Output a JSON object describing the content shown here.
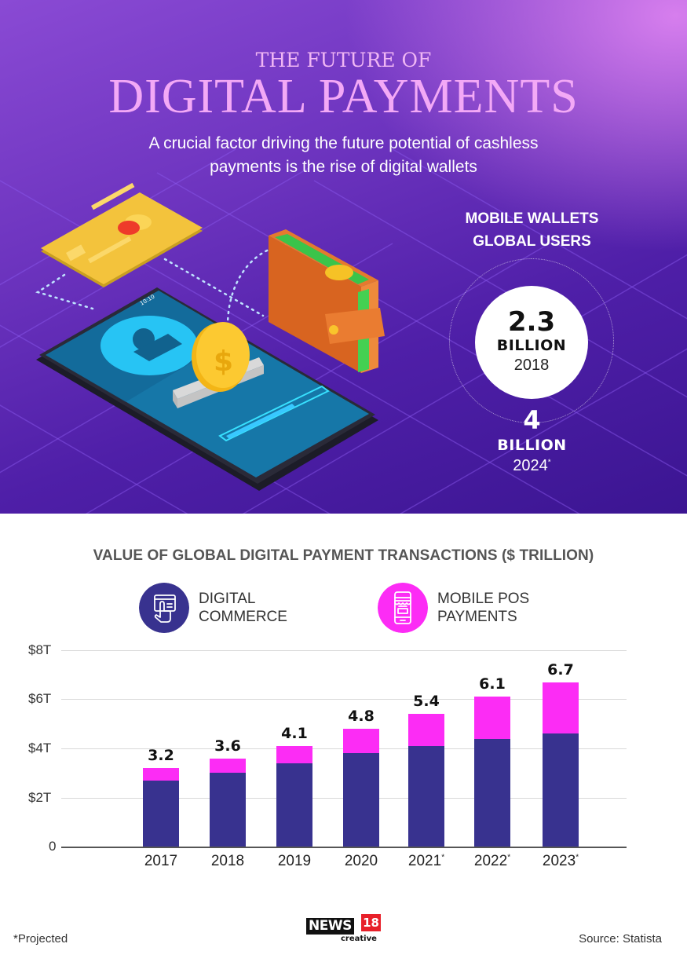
{
  "hero": {
    "title_small": "THE FUTURE OF",
    "title_big": "DIGITAL PAYMENTS",
    "subtitle_line1": "A crucial factor driving the future potential of cashless",
    "subtitle_line2": "payments is the rise of digital wallets",
    "illustration": {
      "icons": [
        "credit-card-icon",
        "smartphone-icon",
        "user-avatar-icon",
        "dollar-coin-icon",
        "wallet-icon",
        "progress-bar-icon"
      ],
      "phone_status_time": "10:10"
    },
    "stat": {
      "heading_line1": "MOBILE WALLETS",
      "heading_line2": "GLOBAL USERS",
      "value_2018": "2.3",
      "unit_2018": "BILLION",
      "year_2018": "2018",
      "value_2024": "4",
      "unit_2024": "BILLION",
      "year_2024": "2024",
      "year_2024_marker": "*"
    }
  },
  "colors": {
    "digital_commerce": "#38328f",
    "mobile_pos": "#fc2cf5",
    "title_pink": "#f3a9f6",
    "hero_purple": "#6d34bf"
  },
  "chart_data": {
    "type": "bar",
    "stacked": true,
    "title": "VALUE OF GLOBAL DIGITAL PAYMENT TRANSACTIONS ($ TRILLION)",
    "categories": [
      "2017",
      "2018",
      "2019",
      "2020",
      "2021*",
      "2022*",
      "2023*"
    ],
    "series": [
      {
        "name": "DIGITAL COMMERCE",
        "color": "#38328f",
        "values": [
          2.7,
          3.0,
          3.4,
          3.8,
          4.1,
          4.4,
          4.6
        ]
      },
      {
        "name": "MOBILE POS PAYMENTS",
        "color": "#fc2cf5",
        "values": [
          0.5,
          0.6,
          0.7,
          1.0,
          1.3,
          1.7,
          2.1
        ]
      }
    ],
    "totals": [
      3.2,
      3.6,
      4.1,
      4.8,
      5.4,
      6.1,
      6.7
    ],
    "total_labels": [
      "3.2",
      "3.6",
      "4.1",
      "4.8",
      "5.4",
      "6.1",
      "6.7"
    ],
    "xlabel": "",
    "ylabel": "",
    "ylim": [
      0,
      8
    ],
    "yticks": [
      "0",
      "$2T",
      "$4T",
      "$6T",
      "$8T"
    ],
    "grid": true,
    "legend_position": "top",
    "annotations": [
      "*Projected"
    ]
  },
  "chart": {
    "title": "VALUE OF GLOBAL DIGITAL PAYMENT TRANSACTIONS ($ TRILLION)",
    "legend": [
      {
        "line1": "DIGITAL",
        "line2": "COMMERCE",
        "icon": "card-touch-icon"
      },
      {
        "line1": "MOBILE POS",
        "line2": "PAYMENTS",
        "icon": "mobile-shop-icon"
      }
    ],
    "yticks": [
      "$8T",
      "$6T",
      "$4T",
      "$2T",
      "0"
    ],
    "xticks": [
      {
        "year": "2017",
        "mark": ""
      },
      {
        "year": "2018",
        "mark": ""
      },
      {
        "year": "2019",
        "mark": ""
      },
      {
        "year": "2020",
        "mark": ""
      },
      {
        "year": "2021",
        "mark": "*"
      },
      {
        "year": "2022",
        "mark": "*"
      },
      {
        "year": "2023",
        "mark": "*"
      }
    ]
  },
  "footer": {
    "note": "*Projected",
    "logo_news": "NEWS",
    "logo_num": "18",
    "logo_sub": "creative",
    "source": "Source: Statista"
  }
}
